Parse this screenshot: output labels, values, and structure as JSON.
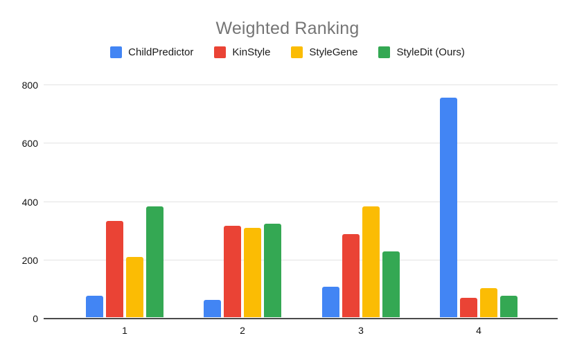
{
  "chart_data": {
    "type": "bar",
    "title": "Weighted Ranking",
    "categories": [
      "1",
      "2",
      "3",
      "4"
    ],
    "series": [
      {
        "name": "ChildPredictor",
        "color": "#4285F4",
        "values": [
          75,
          60,
          105,
          758
        ]
      },
      {
        "name": "KinStyle",
        "color": "#EA4335",
        "values": [
          333,
          315,
          287,
          66
        ]
      },
      {
        "name": "StyleGene",
        "color": "#FBBC04",
        "values": [
          207,
          309,
          381,
          100
        ]
      },
      {
        "name": "StyleDit (Ours)",
        "color": "#34A853",
        "values": [
          382,
          322,
          227,
          73
        ]
      }
    ],
    "xlabel": "",
    "ylabel": "",
    "ylim": [
      0,
      800
    ],
    "yticks": [
      0,
      200,
      400,
      600,
      800
    ],
    "grid": true,
    "legend_position": "top",
    "colors": {
      "title_text": "#757575",
      "axis_text": "#111111",
      "gridline": "#e3e3e3",
      "baseline": "#4a4a4a",
      "background": "#ffffff"
    }
  }
}
